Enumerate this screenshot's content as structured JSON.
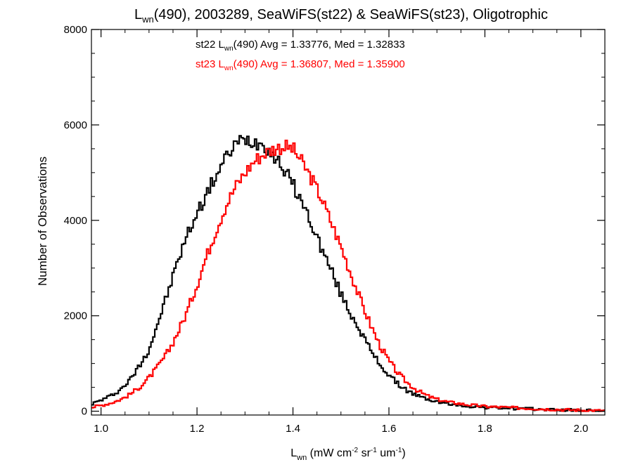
{
  "chart_data": {
    "type": "histogram-step",
    "title": {
      "base": "L",
      "sub": "wn",
      "rest": "(490), 2003289, SeaWiFS(st22) & SeaWiFS(st23), Oligotrophic"
    },
    "xlabel": {
      "base": "L",
      "sub": "wn",
      "rest": " (mW cm",
      "sup1": "-2",
      "mid": " sr",
      "sup2": "-1",
      "mid2": " um",
      "sup3": "-1",
      "end": ")"
    },
    "ylabel": "Number of Observations",
    "xlim": [
      0.98,
      2.05
    ],
    "ylim": [
      -80,
      8000
    ],
    "x_ticks": [
      {
        "value": 1.0,
        "label": "1.0"
      },
      {
        "value": 1.2,
        "label": "1.2"
      },
      {
        "value": 1.4,
        "label": "1.4"
      },
      {
        "value": 1.6,
        "label": "1.6"
      },
      {
        "value": 1.8,
        "label": "1.8"
      },
      {
        "value": 2.0,
        "label": "2.0"
      }
    ],
    "y_ticks": [
      {
        "value": 0,
        "label": "0"
      },
      {
        "value": 2000,
        "label": "2000"
      },
      {
        "value": 4000,
        "label": "4000"
      },
      {
        "value": 6000,
        "label": "6000"
      },
      {
        "value": 8000,
        "label": "8000"
      }
    ],
    "bin_width": 0.004,
    "series": [
      {
        "name": "st22",
        "color": "#000000",
        "label": {
          "pre": "st22 L",
          "sub": "wn",
          "post": "(490) Avg = 1.33776, Med = 1.32833"
        },
        "points": [
          [
            0.98,
            150
          ],
          [
            1.0,
            230
          ],
          [
            1.02,
            320
          ],
          [
            1.04,
            450
          ],
          [
            1.06,
            650
          ],
          [
            1.08,
            950
          ],
          [
            1.1,
            1300
          ],
          [
            1.12,
            1900
          ],
          [
            1.14,
            2500
          ],
          [
            1.16,
            3150
          ],
          [
            1.18,
            3700
          ],
          [
            1.2,
            4150
          ],
          [
            1.22,
            4550
          ],
          [
            1.24,
            4950
          ],
          [
            1.26,
            5300
          ],
          [
            1.28,
            5600
          ],
          [
            1.3,
            5700
          ],
          [
            1.32,
            5650
          ],
          [
            1.34,
            5600
          ],
          [
            1.36,
            5350
          ],
          [
            1.38,
            5100
          ],
          [
            1.4,
            4750
          ],
          [
            1.42,
            4350
          ],
          [
            1.44,
            3900
          ],
          [
            1.46,
            3400
          ],
          [
            1.48,
            2950
          ],
          [
            1.5,
            2450
          ],
          [
            1.52,
            2050
          ],
          [
            1.54,
            1700
          ],
          [
            1.56,
            1300
          ],
          [
            1.58,
            1000
          ],
          [
            1.6,
            750
          ],
          [
            1.62,
            560
          ],
          [
            1.64,
            420
          ],
          [
            1.66,
            320
          ],
          [
            1.68,
            250
          ],
          [
            1.7,
            200
          ],
          [
            1.72,
            160
          ],
          [
            1.74,
            130
          ],
          [
            1.76,
            110
          ],
          [
            1.78,
            95
          ],
          [
            1.8,
            80
          ],
          [
            1.85,
            60
          ],
          [
            1.9,
            45
          ],
          [
            1.95,
            30
          ],
          [
            2.0,
            15
          ],
          [
            2.05,
            5
          ]
        ]
      },
      {
        "name": "st23",
        "color": "#ff0000",
        "label": {
          "pre": "st23 L",
          "sub": "wn",
          "post": "(490) Avg = 1.36807, Med = 1.35900"
        },
        "points": [
          [
            0.98,
            80
          ],
          [
            1.0,
            120
          ],
          [
            1.02,
            170
          ],
          [
            1.04,
            240
          ],
          [
            1.06,
            350
          ],
          [
            1.08,
            500
          ],
          [
            1.1,
            700
          ],
          [
            1.12,
            950
          ],
          [
            1.14,
            1250
          ],
          [
            1.16,
            1650
          ],
          [
            1.18,
            2100
          ],
          [
            1.2,
            2650
          ],
          [
            1.22,
            3250
          ],
          [
            1.24,
            3800
          ],
          [
            1.26,
            4300
          ],
          [
            1.28,
            4700
          ],
          [
            1.3,
            5000
          ],
          [
            1.32,
            5250
          ],
          [
            1.34,
            5400
          ],
          [
            1.36,
            5500
          ],
          [
            1.38,
            5550
          ],
          [
            1.4,
            5500
          ],
          [
            1.42,
            5200
          ],
          [
            1.44,
            4850
          ],
          [
            1.46,
            4450
          ],
          [
            1.48,
            3950
          ],
          [
            1.5,
            3450
          ],
          [
            1.52,
            2900
          ],
          [
            1.54,
            2350
          ],
          [
            1.56,
            1850
          ],
          [
            1.58,
            1400
          ],
          [
            1.6,
            1050
          ],
          [
            1.62,
            780
          ],
          [
            1.64,
            580
          ],
          [
            1.66,
            430
          ],
          [
            1.68,
            320
          ],
          [
            1.7,
            250
          ],
          [
            1.72,
            200
          ],
          [
            1.74,
            170
          ],
          [
            1.76,
            140
          ],
          [
            1.78,
            120
          ],
          [
            1.8,
            100
          ],
          [
            1.85,
            75
          ],
          [
            1.9,
            55
          ],
          [
            1.95,
            35
          ],
          [
            2.0,
            20
          ],
          [
            2.05,
            8
          ]
        ]
      }
    ],
    "grid": false,
    "legend_position": "top-center"
  }
}
